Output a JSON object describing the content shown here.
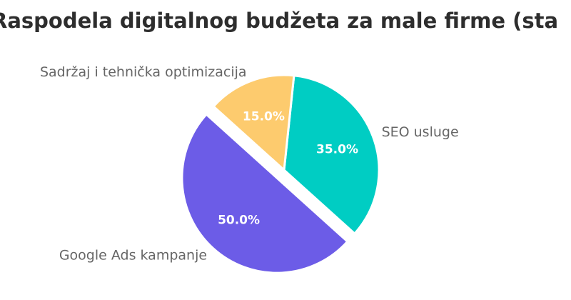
{
  "chart_data": {
    "type": "pie",
    "title": "Raspodela digitalnog budžeta za male firme (sta",
    "slices": [
      {
        "label": "SEO usluge",
        "value": 35.0,
        "display": "35.0%",
        "color": "#00cdc3",
        "text_color": "#ffffff",
        "exploded": false
      },
      {
        "label": "Google Ads kampanje",
        "value": 50.0,
        "display": "50.0%",
        "color": "#6c5ce7",
        "text_color": "#ffffff",
        "exploded": true
      },
      {
        "label": "Sadržaj i tehnička optimizacija",
        "value": 15.0,
        "display": "15.0%",
        "color": "#fdcb6e",
        "text_color": "#ffffff",
        "exploded": false
      }
    ],
    "legend": "none"
  }
}
